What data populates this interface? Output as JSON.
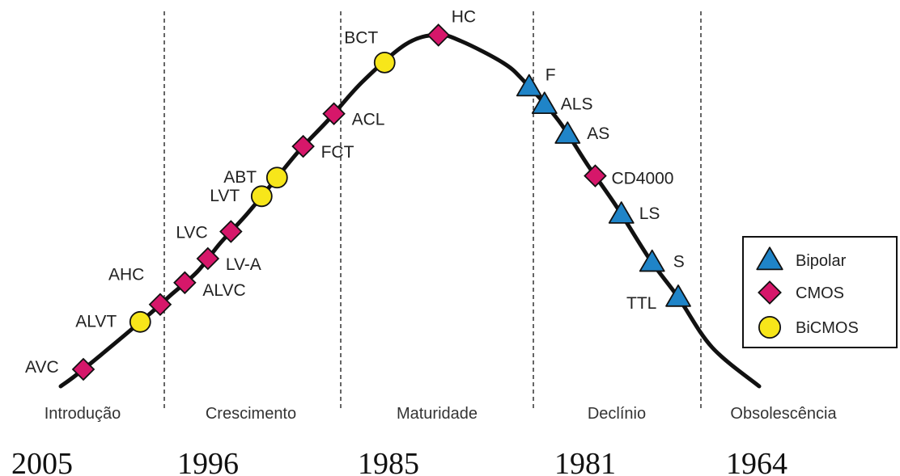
{
  "chart_data": {
    "type": "line",
    "title": "",
    "xlabel": "",
    "ylabel": "",
    "grid": false,
    "legend_position": "right",
    "phases": [
      "Introdução",
      "Crescimento",
      "Maturidade",
      "Declínio",
      "Obsolescência"
    ],
    "years": [
      "2005",
      "1996",
      "1985",
      "1981",
      "1964"
    ],
    "series": [
      {
        "name": "Bipolar",
        "marker": "triangle",
        "color": "#1f84c8",
        "points": [
          {
            "label": "F",
            "x": 2.9
          },
          {
            "label": "ALS",
            "x": 3.0
          },
          {
            "label": "AS",
            "x": 3.15
          },
          {
            "label": "LS",
            "x": 3.5
          },
          {
            "label": "S",
            "x": 3.7
          },
          {
            "label": "TTL",
            "x": 3.87
          }
        ]
      },
      {
        "name": "CMOS",
        "marker": "diamond",
        "color": "#d6176a",
        "points": [
          {
            "label": "AVC",
            "x": 0.0
          },
          {
            "label": "AHC",
            "x": 0.5
          },
          {
            "label": "ALVC",
            "x": 0.66
          },
          {
            "label": "LV-A",
            "x": 0.81
          },
          {
            "label": "LVC",
            "x": 0.96
          },
          {
            "label": "FCT",
            "x": 1.43
          },
          {
            "label": "ACL",
            "x": 1.63
          },
          {
            "label": "HC",
            "x": 2.31
          },
          {
            "label": "CD4000",
            "x": 3.33
          }
        ]
      },
      {
        "name": "BiCMOS",
        "marker": "circle",
        "color": "#f7e61a",
        "points": [
          {
            "label": "ALVT",
            "x": 0.37
          },
          {
            "label": "LVT",
            "x": 1.16
          },
          {
            "label": "ABT",
            "x": 1.26
          },
          {
            "label": "BCT",
            "x": 1.96
          }
        ]
      }
    ]
  }
}
